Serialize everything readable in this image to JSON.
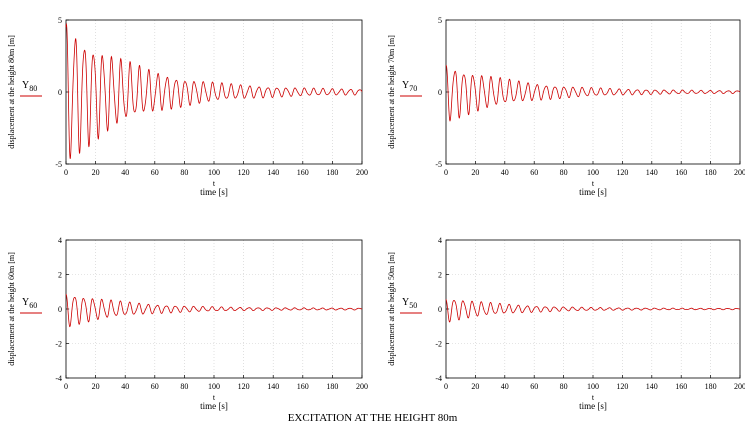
{
  "caption": "EXCITATION AT THE HEIGHT 80m",
  "colors": {
    "signal": "#cc0000",
    "axes": "#000000",
    "grid": "#cccccc"
  },
  "chart_data": [
    {
      "type": "line",
      "ylabel": "displacement at the height 80m [m]",
      "xlabel_var": "t",
      "xlabel": "time [s]",
      "legend_base": "Y",
      "legend_sub": "80",
      "xlim": [
        0,
        200
      ],
      "ylim": [
        -5,
        5
      ],
      "xticks": [
        0,
        20,
        40,
        60,
        80,
        100,
        120,
        140,
        160,
        180,
        200
      ],
      "yticks": [
        -5,
        0,
        5
      ],
      "grid": true,
      "series": [
        {
          "amplitude0": 5.3,
          "amplitude_tail": 0.15,
          "period_s": 6.2,
          "decay_s": 45
        }
      ]
    },
    {
      "type": "line",
      "ylabel": "displacement at the height 70m [m]",
      "xlabel_var": "t",
      "xlabel": "time [s]",
      "legend_base": "Y",
      "legend_sub": "70",
      "xlim": [
        0,
        200
      ],
      "ylim": [
        -5,
        5
      ],
      "xticks": [
        0,
        20,
        40,
        60,
        80,
        100,
        120,
        140,
        160,
        180,
        200
      ],
      "yticks": [
        -5,
        0,
        5
      ],
      "grid": true,
      "series": [
        {
          "amplitude0": 2.2,
          "amplitude_tail": 0.08,
          "period_s": 6.2,
          "decay_s": 45
        }
      ]
    },
    {
      "type": "line",
      "ylabel": "displacement at the height 60m [m]",
      "xlabel_var": "t",
      "xlabel": "time [s]",
      "legend_base": "Y",
      "legend_sub": "60",
      "xlim": [
        0,
        200
      ],
      "ylim": [
        -4,
        4
      ],
      "xticks": [
        0,
        20,
        40,
        60,
        80,
        100,
        120,
        140,
        160,
        180,
        200
      ],
      "yticks": [
        -4,
        -2,
        0,
        2,
        4
      ],
      "grid": true,
      "series": [
        {
          "amplitude0": 1.1,
          "amplitude_tail": 0.05,
          "period_s": 6.2,
          "decay_s": 40
        }
      ]
    },
    {
      "type": "line",
      "ylabel": "displacement at the height 50m [m]",
      "xlabel_var": "t",
      "xlabel": "time [s]",
      "legend_base": "Y",
      "legend_sub": "50",
      "xlim": [
        0,
        200
      ],
      "ylim": [
        -4,
        4
      ],
      "xticks": [
        0,
        20,
        40,
        60,
        80,
        100,
        120,
        140,
        160,
        180,
        200
      ],
      "yticks": [
        -4,
        -2,
        0,
        2,
        4
      ],
      "grid": true,
      "series": [
        {
          "amplitude0": 0.8,
          "amplitude_tail": 0.04,
          "period_s": 6.2,
          "decay_s": 38
        }
      ]
    }
  ]
}
